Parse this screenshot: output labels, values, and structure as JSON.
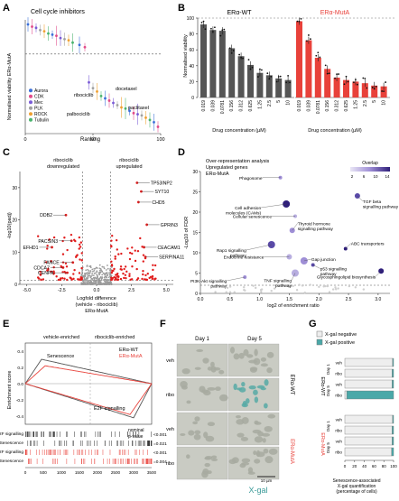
{
  "panel_labels": {
    "A": "A",
    "B": "B",
    "C": "C",
    "D": "D",
    "E": "E",
    "F": "F",
    "G": "G"
  },
  "colors": {
    "wt": "#555555",
    "muta": "#e8413a",
    "teal": "#4aa8a8",
    "sig": "#e11d1d",
    "nonsig": "#9a9a9a"
  },
  "chart_data": [
    {
      "type": "scatter",
      "panel": "A",
      "title": "Cell cycle inhibitors",
      "xlabel": "Ranking",
      "ylabel": "Normalised viability ERα-MutA",
      "xlim": [
        0,
        100
      ],
      "x_ticks": [
        "0",
        "50",
        "100"
      ],
      "legend": [
        "Aurora",
        "CDK",
        "Mec",
        "PLK",
        "ROCK",
        "Tubulin"
      ],
      "legend_colors": [
        "#3a6fd8",
        "#e14b8a",
        "#7a5bd6",
        "#a0a0a0",
        "#f0a030",
        "#49b36d"
      ],
      "annotations": [
        "ribociclib",
        "palbociclib",
        "docetaxel",
        "paclitaxel"
      ],
      "x": [
        2,
        5,
        8,
        11,
        14,
        17,
        20,
        23,
        26,
        29,
        32,
        35,
        40,
        44,
        47,
        50,
        53,
        56,
        59,
        62,
        65,
        68,
        71,
        74,
        77,
        80,
        83,
        86,
        89,
        92,
        95,
        98
      ],
      "y": [
        0.96,
        0.94,
        0.93,
        0.91,
        0.9,
        0.88,
        0.87,
        0.86,
        0.84,
        0.83,
        0.82,
        0.8,
        0.78,
        0.76,
        0.45,
        0.4,
        0.37,
        0.33,
        0.31,
        0.29,
        0.27,
        0.25,
        0.23,
        0.22,
        0.2,
        0.18,
        0.17,
        0.16,
        0.14,
        0.12,
        0.1,
        0.06
      ],
      "y_threshold": 0.7
    },
    {
      "type": "bar",
      "panel": "B",
      "categories": [
        "0.019",
        "0.039",
        "0.0781",
        "0.156",
        "0.312",
        "0.625",
        "1.25",
        "2.5",
        "5",
        "10"
      ],
      "series": [
        {
          "name": "ERα-WT",
          "values": [
            92,
            85,
            84,
            62,
            52,
            41,
            31,
            28,
            24,
            22
          ]
        },
        {
          "name": "ERα-MutA",
          "values": [
            96,
            72,
            50,
            36,
            25,
            22,
            20,
            18,
            15,
            14
          ]
        }
      ],
      "ylabel": "Normalised viability",
      "xlabel_wt": "Drug concentration (µM)",
      "xlabel_muta": "Drug concentration (µM)",
      "ylim": [
        0,
        100
      ],
      "y_ticks": [
        "0",
        "20",
        "40",
        "60",
        "80",
        "100"
      ]
    },
    {
      "type": "scatter",
      "panel": "C",
      "xlabel": "Logfold difference (vehicle - ribociclib) ERα-MutA",
      "ylabel": "-log10(padj)",
      "xlim": [
        -5.5,
        5.5
      ],
      "ylim": [
        0,
        35
      ],
      "x_ticks": [
        "-5.0",
        "-2.5",
        "0.0",
        "2.5",
        "5.0"
      ],
      "y_ticks": [
        "0",
        "10",
        "20",
        "30"
      ],
      "label_down": "ribociclib downregulated",
      "label_up": "ribociclib upregulated",
      "genes": [
        {
          "name": "DDB2",
          "x": -2.2,
          "y": 21.5
        },
        {
          "name": "PACSIN3",
          "x": -1.8,
          "y": 13.5
        },
        {
          "name": "EFHD1",
          "x": -3.2,
          "y": 11.5
        },
        {
          "name": "FANCE",
          "x": -1.7,
          "y": 6.8
        },
        {
          "name": "CDCA7",
          "x": -2.4,
          "y": 5.2
        },
        {
          "name": "CENPA",
          "x": -2.1,
          "y": 3.6
        },
        {
          "name": "TP53INP2",
          "x": 2.9,
          "y": 31.5
        },
        {
          "name": "SYT10",
          "x": 3.2,
          "y": 28.8
        },
        {
          "name": "CHD5",
          "x": 3.0,
          "y": 25.5
        },
        {
          "name": "GPRIN3",
          "x": 3.6,
          "y": 18.5
        },
        {
          "name": "CEACAM1",
          "x": 3.4,
          "y": 11.5
        },
        {
          "name": "SERPINA11",
          "x": 3.5,
          "y": 8.5
        }
      ]
    },
    {
      "type": "scatter",
      "panel": "D",
      "title_lines": [
        "Over-representation analysis",
        "Upregulated genes",
        "ERα-MutA"
      ],
      "xlabel": "log2 of enrichment ratio",
      "ylabel": "-Log10 of FDR",
      "xlim": [
        0,
        3.2
      ],
      "ylim": [
        0,
        30
      ],
      "x_ticks": [
        "0.0",
        "0.5",
        "1.0",
        "1.5",
        "2.0",
        "2.5",
        "3.0"
      ],
      "y_ticks": [
        "0",
        "5",
        "10",
        "15",
        "20",
        "25",
        "30"
      ],
      "legend_title": "Overlap",
      "legend_ticks": [
        "2",
        "6",
        "10",
        "14"
      ],
      "pathways": [
        {
          "name": "Phagosome",
          "x": 1.35,
          "y": 28.5
        },
        {
          "name": "TGF beta signalling pathway",
          "x": 2.65,
          "y": 24.0
        },
        {
          "name": "Cell adhesion molecules (CAMs)",
          "x": 1.45,
          "y": 22.0
        },
        {
          "name": "Cellular senescence",
          "x": 1.6,
          "y": 19.0
        },
        {
          "name": "Thyroid hormone signalling pathway",
          "x": 1.55,
          "y": 15.5
        },
        {
          "name": "Rap1 signalling pathway",
          "x": 1.2,
          "y": 12.0
        },
        {
          "name": "ABC transporters",
          "x": 2.45,
          "y": 11.0
        },
        {
          "name": "Endocrine resistance",
          "x": 1.5,
          "y": 9.0
        },
        {
          "name": "Gap junction",
          "x": 1.75,
          "y": 8.0
        },
        {
          "name": "p53 signalling pathway",
          "x": 1.9,
          "y": 7.0
        },
        {
          "name": "Glycosphingolipid biosynthesis",
          "x": 3.05,
          "y": 5.5
        },
        {
          "name": "TNF signalling pathway",
          "x": 1.6,
          "y": 5.0
        },
        {
          "name": "PI3K-Akt signalling pathway",
          "x": 0.75,
          "y": 4.0
        }
      ]
    },
    {
      "type": "line",
      "panel": "E",
      "label_left": "vehicle-enriched",
      "label_right": "ribociclib-enriched",
      "legend": [
        "ERα-WT",
        "ERα-MutA"
      ],
      "annotations": [
        "Senescence",
        "E2F signalling"
      ],
      "pvalue_header": "nominal p-value",
      "ylabel": "Enrichment score",
      "y_ticks": [
        "0.4",
        "0.2",
        "0.0",
        "-0.2",
        "-0.4"
      ],
      "x_ticks": [
        "0",
        "500",
        "1000",
        "1500",
        "2000",
        "2500",
        "3000",
        "3500"
      ],
      "ylim": [
        -0.5,
        0.5
      ],
      "xlim": [
        0,
        3500
      ],
      "rows": [
        {
          "label": "E2F signalling",
          "pvalue": "<0.001"
        },
        {
          "label": "Senescence",
          "pvalue": "=0.021"
        },
        {
          "label": "E2F signalling",
          "pvalue": "<0.001"
        },
        {
          "label": "Senescence",
          "pvalue": "=0.004"
        }
      ]
    },
    {
      "type": "bar",
      "panel": "G",
      "legend": [
        "X-gal negative",
        "X-gal positive"
      ],
      "xlabel": "Senescence-associated X-gal quantification (percentage of cells)",
      "x_ticks": [
        "0",
        "20",
        "40",
        "60",
        "80",
        "100"
      ],
      "xlim": [
        0,
        100
      ],
      "group_wt": "ERα-WT",
      "group_muta": "ERα-MutA",
      "rows": [
        {
          "day": "Day 1",
          "treatment": "veh",
          "negative": 98,
          "positive": 2
        },
        {
          "day": "Day 1",
          "treatment": "ribo",
          "negative": 97,
          "positive": 3
        },
        {
          "day": "Day 5",
          "treatment": "veh",
          "negative": 97,
          "positive": 3
        },
        {
          "day": "Day 5",
          "treatment": "ribo",
          "negative": 4,
          "positive": 96
        },
        {
          "day": "Day 1",
          "treatment": "veh",
          "negative": 98,
          "positive": 2
        },
        {
          "day": "Day 1",
          "treatment": "ribo",
          "negative": 97,
          "positive": 3
        },
        {
          "day": "Day 5",
          "treatment": "veh",
          "negative": 97,
          "positive": 3
        },
        {
          "day": "Day 5",
          "treatment": "ribo",
          "negative": 96,
          "positive": 4
        }
      ]
    }
  ],
  "panel_f": {
    "col_headers": [
      "Day 1",
      "Day 5"
    ],
    "row_labels": [
      "veh",
      "ribo",
      "veh",
      "ribo"
    ],
    "group_wt": "ERα-WT",
    "group_muta": "ERα-MutA",
    "scale_text": "10 µm",
    "stain_label": "X-gal"
  }
}
